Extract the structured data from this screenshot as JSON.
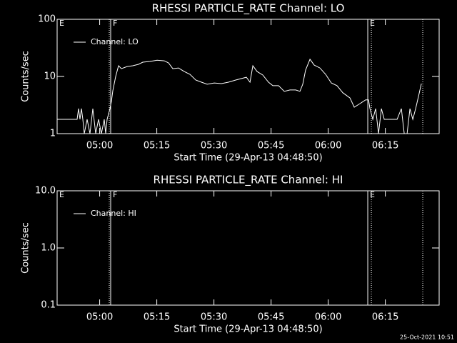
{
  "chart_data": [
    {
      "type": "line",
      "title": "RHESSI PARTICLE_RATE Channel: LO",
      "xlabel": "Start Time (29-Apr-13 04:48:50)",
      "ylabel": "Counts/sec",
      "log_y": true,
      "legend": "upper left",
      "xlim": [
        0,
        100.3
      ],
      "xticks": [
        {
          "value": 11.17,
          "label": "05:00"
        },
        {
          "value": 26.17,
          "label": "05:15"
        },
        {
          "value": 41.17,
          "label": "05:30"
        },
        {
          "value": 56.17,
          "label": "05:45"
        },
        {
          "value": 71.17,
          "label": "06:00"
        },
        {
          "value": 86.17,
          "label": "06:15"
        }
      ],
      "ylim": [
        1,
        100
      ],
      "yticks": [
        1,
        10,
        100
      ],
      "markers": [
        {
          "x": 13.69,
          "style": "dotted"
        },
        {
          "x": 14.06,
          "style": "solid"
        },
        {
          "x": 81.56,
          "style": "solid"
        },
        {
          "x": 82.5,
          "style": "dotted"
        },
        {
          "x": 96,
          "style": "dotted"
        }
      ],
      "annotations": [
        {
          "x": 0,
          "text": "E"
        },
        {
          "x": 14.06,
          "text": "F"
        },
        {
          "x": 81.56,
          "text": "E"
        }
      ],
      "series": [
        {
          "name": "Channel: LO",
          "color": "#ffffff",
          "x": [
            0,
            5.25,
            5.63,
            6,
            6.38,
            6.75,
            7.13,
            7.88,
            8.63,
            9.38,
            10.13,
            10.88,
            11.63,
            12.38,
            12.75,
            13.13,
            13.88,
            14.25,
            14.63,
            15.38,
            16.13,
            16.88,
            18.38,
            19.88,
            21.38,
            22.5,
            24.38,
            26.25,
            28.13,
            29.25,
            30.38,
            31.88,
            33.38,
            34.88,
            36.38,
            37.88,
            39.38,
            41.25,
            43.13,
            45,
            46.88,
            49.69,
            50.63,
            51.38,
            52.5,
            54,
            55.5,
            56.63,
            58.13,
            59.63,
            61.13,
            62.63,
            63.75,
            64.5,
            65.25,
            66.38,
            67.5,
            69,
            70.5,
            72,
            73.5,
            75,
            76.88,
            78,
            79.5,
            81,
            81.75,
            82.13,
            82.88,
            83.63,
            84.38,
            85.13,
            85.88,
            87.38,
            89.25,
            90.38,
            91.13,
            91.88,
            92.63,
            93.38,
            94.13,
            94.88,
            95.63
          ],
          "values": [
            1.78,
            1.78,
            2.74,
            1.78,
            2.74,
            1.78,
            1,
            1.78,
            1,
            2.74,
            1,
            1.78,
            1,
            1.78,
            1,
            1.78,
            2.74,
            3.65,
            5.62,
            10,
            15.4,
            13.7,
            14.9,
            15.4,
            16.3,
            17.8,
            18.3,
            19.3,
            18.8,
            17.3,
            13.7,
            14.1,
            12.2,
            10.9,
            8.66,
            7.94,
            7.3,
            7.7,
            7.5,
            7.94,
            8.66,
            9.7,
            7.94,
            15.4,
            12.2,
            10.6,
            7.94,
            6.9,
            6.9,
            5.5,
            5.8,
            5.8,
            5.5,
            7.3,
            13.0,
            20,
            15.8,
            14.1,
            10.9,
            7.7,
            6.9,
            5.2,
            4.2,
            2.9,
            3.35,
            3.9,
            3.9,
            2.74,
            1.78,
            2.74,
            1,
            2.74,
            1.78,
            1.78,
            1.78,
            2.74,
            1,
            1,
            2.74,
            1.78,
            2.74,
            4.5,
            7.5
          ]
        }
      ]
    },
    {
      "type": "line",
      "title": "RHESSI PARTICLE_RATE Channel: HI",
      "xlabel": "Start Time (29-Apr-13 04:48:50)",
      "ylabel": "Counts/sec",
      "log_y": true,
      "legend": "upper left",
      "xlim": [
        0,
        100.3
      ],
      "xticks": [
        {
          "value": 11.17,
          "label": "05:00"
        },
        {
          "value": 26.17,
          "label": "05:15"
        },
        {
          "value": 41.17,
          "label": "05:30"
        },
        {
          "value": 56.17,
          "label": "05:45"
        },
        {
          "value": 71.17,
          "label": "06:00"
        },
        {
          "value": 86.17,
          "label": "06:15"
        }
      ],
      "ylim": [
        0.1,
        10
      ],
      "yticks": [
        {
          "value": 0.1,
          "label": "0.1"
        },
        {
          "value": 1,
          "label": "1.0"
        },
        {
          "value": 10,
          "label": "10.0"
        }
      ],
      "markers": [
        {
          "x": 13.69,
          "style": "dotted"
        },
        {
          "x": 14.06,
          "style": "solid"
        },
        {
          "x": 81.56,
          "style": "solid"
        },
        {
          "x": 82.5,
          "style": "dotted"
        },
        {
          "x": 96,
          "style": "dotted"
        }
      ],
      "annotations": [
        {
          "x": 0,
          "text": "E"
        },
        {
          "x": 14.06,
          "text": "F"
        },
        {
          "x": 81.56,
          "text": "E"
        }
      ],
      "series": [
        {
          "name": "Channel: HI",
          "color": "#ffffff",
          "x": [],
          "values": []
        }
      ]
    }
  ],
  "footer": "25-Oct-2021 10:51"
}
